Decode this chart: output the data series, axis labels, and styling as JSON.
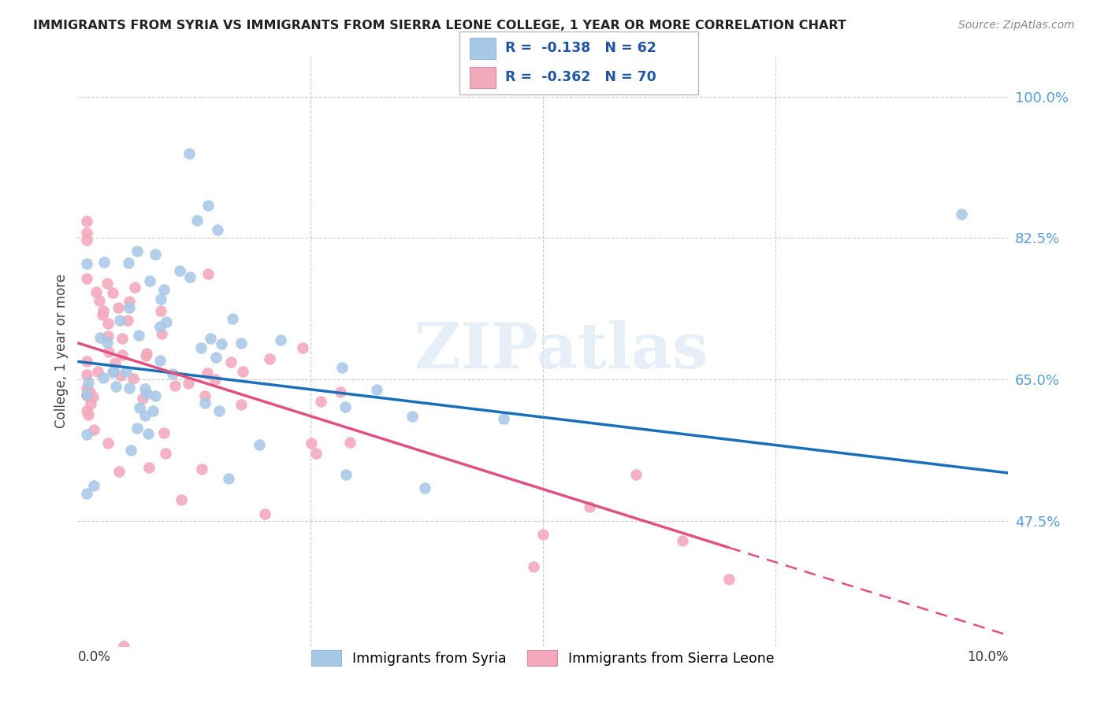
{
  "title": "IMMIGRANTS FROM SYRIA VS IMMIGRANTS FROM SIERRA LEONE COLLEGE, 1 YEAR OR MORE CORRELATION CHART",
  "source": "Source: ZipAtlas.com",
  "ylabel": "College, 1 year or more",
  "xlim": [
    0.0,
    0.1
  ],
  "ylim": [
    0.32,
    1.05
  ],
  "legend_R_syria": "-0.138",
  "legend_N_syria": "62",
  "legend_R_leone": "-0.362",
  "legend_N_leone": "70",
  "color_syria": "#a8c8e8",
  "color_leone": "#f4a8bc",
  "trendline_syria_color": "#1a6fba",
  "trendline_leone_color": "#e05080",
  "watermark": "ZIPatlas",
  "syria_intercept": 0.672,
  "syria_slope": -1.38,
  "leone_intercept": 0.695,
  "leone_slope": -3.62,
  "syria_scatter_std": 0.085,
  "leone_scatter_std": 0.075,
  "yticks": [
    0.475,
    0.65,
    0.825,
    1.0
  ],
  "ytick_labels": [
    "47.5%",
    "65.0%",
    "82.5%",
    "100.0%"
  ],
  "grid_xticks": [
    0.025,
    0.05,
    0.075
  ],
  "trendline_syria_x0": 0.0,
  "trendline_syria_x1": 0.1,
  "trendline_leone_solid_x1": 0.07,
  "trendline_leone_dash_x1": 0.1
}
